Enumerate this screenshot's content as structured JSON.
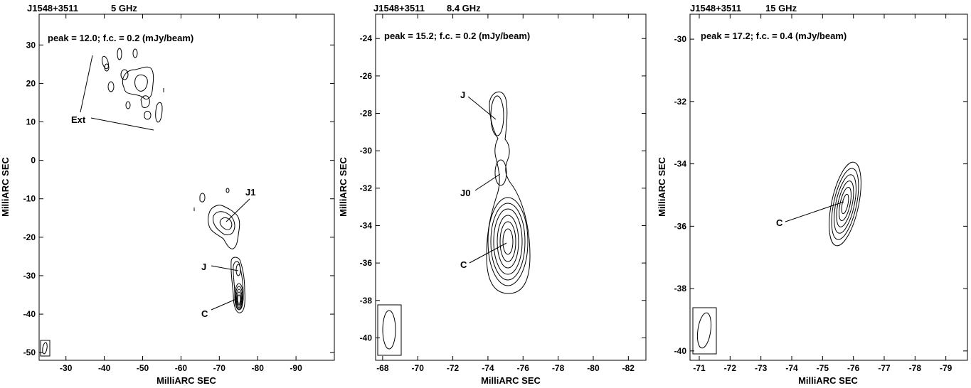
{
  "chart_data": [
    {
      "type": "contour",
      "source": "J1548+3511",
      "frequency": "5 GHz",
      "annotation": "peak = 12.0;  f.c. = 0.2 (mJy/beam)",
      "xlabel": "MilliARC SEC",
      "ylabel": "MilliARC SEC",
      "xlim": [
        -23,
        -100
      ],
      "ylim": [
        -52,
        38
      ],
      "xticks": [
        -30,
        -40,
        -50,
        -60,
        -70,
        -80,
        -90
      ],
      "xtick_labels": [
        "-30",
        "-40",
        "-50",
        "-60",
        "-70",
        "-80",
        "-90"
      ],
      "yticks": [
        30,
        20,
        10,
        0,
        -10,
        -20,
        -30,
        -40,
        -50
      ],
      "ytick_labels": [
        "30",
        "20",
        "10",
        "0",
        "-10",
        "-20",
        "-30",
        "-40",
        "-50"
      ],
      "components": [
        {
          "label": "Ext",
          "x": -50,
          "y": 22
        },
        {
          "label": "J1",
          "x": -73,
          "y": -16
        },
        {
          "label": "J",
          "x": -75,
          "y": -29
        },
        {
          "label": "C",
          "x": -75.5,
          "y": -35
        }
      ],
      "beam": {
        "x": -25,
        "y": -49
      }
    },
    {
      "type": "contour",
      "source": "J1548+3511",
      "frequency": "8.4 GHz",
      "annotation": "peak = 15.2;  f.c. = 0.2 (mJy/beam)",
      "xlabel": "MilliARC SEC",
      "ylabel": "MilliARC SEC",
      "xlim": [
        -67.6,
        -83.0
      ],
      "ylim": [
        -41.2,
        -22.7
      ],
      "xticks": [
        -68,
        -70,
        -72,
        -74,
        -76,
        -78,
        -80,
        -82
      ],
      "xtick_labels": [
        "-68",
        "-70",
        "-72",
        "-74",
        "-76",
        "-78",
        "-80",
        "-82"
      ],
      "yticks": [
        -24,
        -26,
        -28,
        -30,
        -32,
        -34,
        -36,
        -38,
        -40
      ],
      "ytick_labels": [
        "-24",
        "-26",
        "-28",
        "-30",
        "-32",
        "-34",
        "-36",
        "-38",
        "-40"
      ],
      "components": [
        {
          "label": "J",
          "x": -74.4,
          "y": -28.2
        },
        {
          "label": "J0",
          "x": -74.6,
          "y": -31.2
        },
        {
          "label": "C",
          "x": -75.1,
          "y": -35.4
        }
      ],
      "beam": {
        "x": -68.5,
        "y": -40
      }
    },
    {
      "type": "contour",
      "source": "J1548+3511",
      "frequency": "15 GHz",
      "annotation": "peak = 17.2;  f.c. = 0.4 (mJy/beam)",
      "xlabel": "MilliARC SEC",
      "ylabel": "MilliARC SEC",
      "xlim": [
        -70.7,
        -79.7
      ],
      "ylim": [
        -40.3,
        -29.2
      ],
      "xticks": [
        -71,
        -72,
        -73,
        -74,
        -75,
        -76,
        -77,
        -78,
        -79
      ],
      "xtick_labels": [
        "-71",
        "-72",
        "-73",
        "-74",
        "-75",
        "-76",
        "-77",
        "-78",
        "-79"
      ],
      "yticks": [
        -30,
        -32,
        -34,
        -36,
        -38,
        -40
      ],
      "ytick_labels": [
        "-30",
        "-32",
        "-34",
        "-36",
        "-38",
        "-40"
      ],
      "components": [
        {
          "label": "C",
          "x": -75.3,
          "y": -35
        }
      ],
      "beam": {
        "x": -71.2,
        "y": -39.2
      }
    }
  ]
}
